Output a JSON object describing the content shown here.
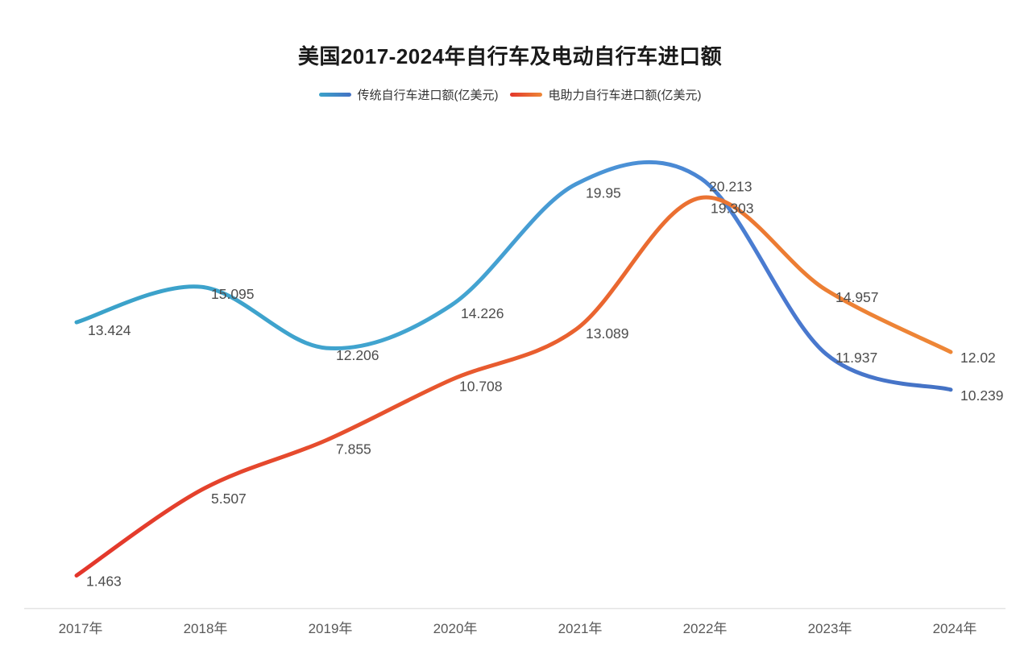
{
  "title": "美国2017-2024年自行车及电动自行车进口额",
  "chart_data": {
    "type": "line",
    "smooth": true,
    "grid": false,
    "legend_position": "top",
    "data_labels_shown": true,
    "background": "#ffffff",
    "title_color": "#1a1a1a",
    "data_label_color": "#4d4d4d",
    "axis_line_color": "#e4e4e4",
    "axis_label_color": "#595959",
    "ylim": [
      0,
      28.6
    ],
    "categories": [
      "2017年",
      "2018年",
      "2019年",
      "2020年",
      "2021年",
      "2022年",
      "2023年",
      "2024年"
    ],
    "series": [
      {
        "name": "传统自行车进口额(亿美元)",
        "values": [
          13.424,
          15.095,
          12.206,
          14.226,
          19.95,
          20.213,
          11.937,
          10.239
        ],
        "gradient_stops": [
          {
            "offset": "0%",
            "color": "#3aa2c9"
          },
          {
            "offset": "45%",
            "color": "#43a4d1"
          },
          {
            "offset": "62%",
            "color": "#4b92d6"
          },
          {
            "offset": "80%",
            "color": "#4a79d0"
          },
          {
            "offset": "100%",
            "color": "#4472c4"
          }
        ]
      },
      {
        "name": "电助力自行车进口额(亿美元)",
        "values": [
          1.463,
          5.507,
          7.855,
          10.708,
          13.089,
          19.303,
          14.957,
          12.02
        ],
        "gradient_stops": [
          {
            "offset": "0%",
            "color": "#e3362b"
          },
          {
            "offset": "30%",
            "color": "#e64f2e"
          },
          {
            "offset": "55%",
            "color": "#e9602f"
          },
          {
            "offset": "80%",
            "color": "#ec7c33"
          },
          {
            "offset": "100%",
            "color": "#ee8737"
          }
        ]
      }
    ]
  }
}
